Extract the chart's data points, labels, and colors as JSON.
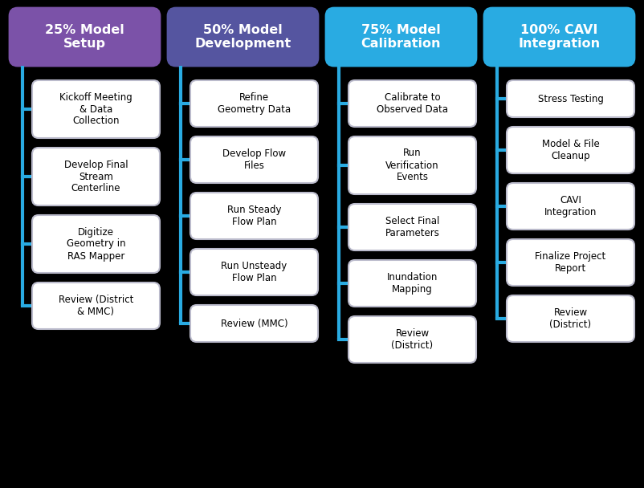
{
  "background_color": "#000000",
  "columns": [
    {
      "header": "25% Model\nSetup",
      "header_color": "#7B52A8",
      "line_color": "#29ABE2",
      "items": [
        "Kickoff Meeting\n& Data\nCollection",
        "Develop Final\nStream\nCenterline",
        "Digitize\nGeometry in\nRAS Mapper",
        "Review (District\n& MMC)"
      ]
    },
    {
      "header": "50% Model\nDevelopment",
      "header_color": "#5555A0",
      "line_color": "#29ABE2",
      "items": [
        "Refine\nGeometry Data",
        "Develop Flow\nFiles",
        "Run Steady\nFlow Plan",
        "Run Unsteady\nFlow Plan",
        "Review (MMC)"
      ]
    },
    {
      "header": "75% Model\nCalibration",
      "header_color": "#29ABE2",
      "line_color": "#29ABE2",
      "items": [
        "Calibrate to\nObserved Data",
        "Run\nVerification\nEvents",
        "Select Final\nParameters",
        "Inundation\nMapping",
        "Review\n(District)"
      ]
    },
    {
      "header": "100% CAVI\nIntegration",
      "header_color": "#29ABE2",
      "line_color": "#29ABE2",
      "items": [
        "Stress Testing",
        "Model & File\nCleanup",
        "CAVI\nIntegration",
        "Finalize Project\nReport",
        "Review\n(District)"
      ]
    }
  ],
  "box_face_color": "#FFFFFF",
  "box_edge_color": "#BBBBCC",
  "header_text_color": "#FFFFFF",
  "item_text_color": "#000000",
  "figsize": [
    8.02,
    6.08
  ],
  "dpi": 100
}
